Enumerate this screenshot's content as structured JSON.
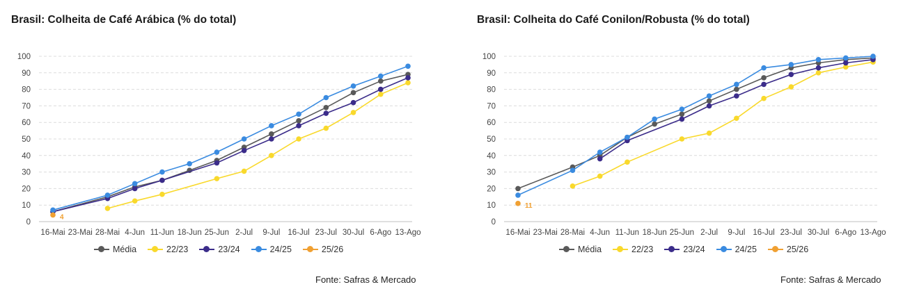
{
  "chart_data": [
    {
      "type": "line",
      "title": "Brasil: Colheita de Café Arábica (% do total)",
      "source": "Fonte: Safras & Mercado",
      "categories": [
        "16-Mai",
        "23-Mai",
        "28-Mai",
        "4-Jun",
        "11-Jun",
        "18-Jun",
        "25-Jun",
        "2-Jul",
        "9-Jul",
        "16-Jul",
        "23-Jul",
        "30-Jul",
        "6-Ago",
        "13-Ago"
      ],
      "yticks": [
        "0",
        "10",
        "20",
        "30",
        "40",
        "50",
        "60",
        "70",
        "80",
        "90",
        "100"
      ],
      "ylim": [
        0,
        100
      ],
      "grid": "dashed-horizontal",
      "legend_position": "bottom",
      "series": [
        {
          "name": "Média",
          "color": "#595959",
          "values": [
            6,
            null,
            15,
            21,
            25,
            31,
            37,
            45,
            53,
            61,
            69,
            78,
            85,
            89
          ]
        },
        {
          "name": "22/23",
          "color": "#f9d92c",
          "values": [
            null,
            null,
            8,
            12.5,
            16.5,
            null,
            26,
            30.5,
            40,
            50,
            56.5,
            66,
            77,
            84
          ]
        },
        {
          "name": "23/24",
          "color": "#3b2c8a",
          "values": [
            6,
            null,
            14,
            20,
            25,
            null,
            35.5,
            43,
            50,
            58,
            65.5,
            72,
            80,
            87
          ]
        },
        {
          "name": "24/25",
          "color": "#3a8be0",
          "values": [
            7,
            null,
            16,
            23,
            30,
            35,
            42,
            50,
            58,
            65,
            75,
            82,
            88,
            94
          ]
        },
        {
          "name": "25/26",
          "color": "#f0a032",
          "values": [
            4,
            null,
            null,
            null,
            null,
            null,
            null,
            null,
            null,
            null,
            null,
            null,
            null,
            null
          ]
        }
      ],
      "annotations": [
        {
          "series": "25/26",
          "category": "16-Mai",
          "text": "4"
        }
      ]
    },
    {
      "type": "line",
      "title": "Brasil: Colheita do Café Conilon/Robusta (% do total)",
      "source": "Fonte: Safras & Mercado",
      "categories": [
        "16-Mai",
        "23-Mai",
        "28-Mai",
        "4-Jun",
        "11-Jun",
        "18-Jun",
        "25-Jun",
        "2-Jul",
        "9-Jul",
        "16-Jul",
        "23-Jul",
        "30-Jul",
        "6-Ago",
        "13-Ago"
      ],
      "yticks": [
        "0",
        "10",
        "20",
        "30",
        "40",
        "50",
        "60",
        "70",
        "80",
        "90",
        "100"
      ],
      "ylim": [
        0,
        100
      ],
      "grid": "dashed-horizontal",
      "legend_position": "bottom",
      "series": [
        {
          "name": "Média",
          "color": "#595959",
          "values": [
            20,
            null,
            33,
            40,
            51,
            59,
            65,
            73,
            80,
            87,
            93,
            96,
            98,
            99
          ]
        },
        {
          "name": "22/23",
          "color": "#f9d92c",
          "values": [
            null,
            null,
            21.5,
            27.5,
            36,
            null,
            50,
            53.5,
            62.5,
            74.5,
            81.5,
            90,
            93.5,
            96.5
          ]
        },
        {
          "name": "23/24",
          "color": "#3b2c8a",
          "values": [
            null,
            null,
            null,
            38,
            49,
            null,
            62,
            70,
            76,
            83,
            89,
            93,
            96,
            98
          ]
        },
        {
          "name": "24/25",
          "color": "#3a8be0",
          "values": [
            16,
            null,
            31,
            42,
            51,
            62,
            68,
            76,
            83,
            93,
            95,
            98,
            99,
            100
          ]
        },
        {
          "name": "25/26",
          "color": "#f0a032",
          "values": [
            11,
            null,
            null,
            null,
            null,
            null,
            null,
            null,
            null,
            null,
            null,
            null,
            null,
            null
          ]
        }
      ],
      "annotations": [
        {
          "series": "25/26",
          "category": "16-Mai",
          "text": "11"
        }
      ]
    }
  ]
}
